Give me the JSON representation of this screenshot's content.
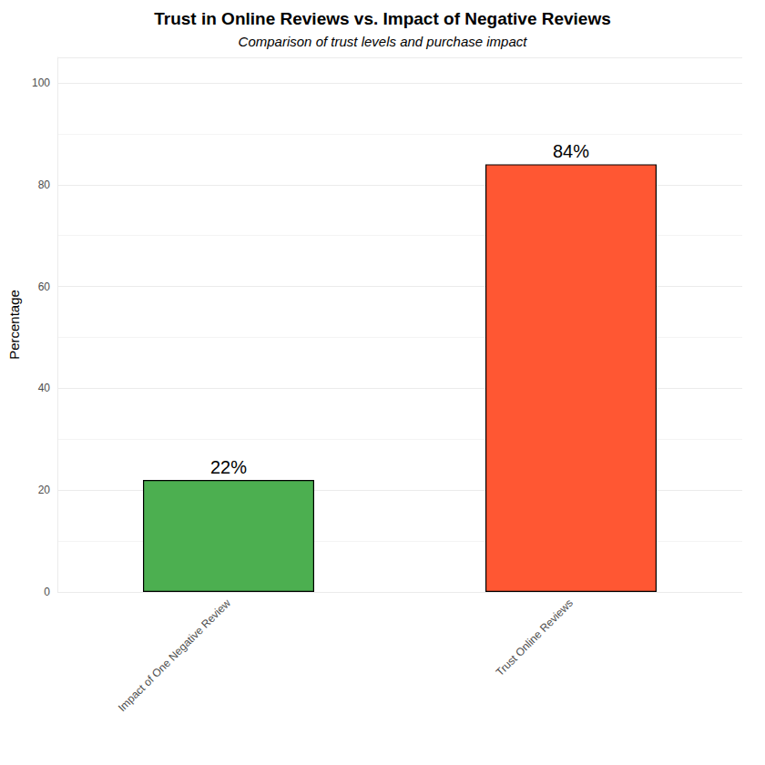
{
  "chart_data": {
    "type": "bar",
    "title": "Trust in Online Reviews vs. Impact of Negative Reviews",
    "subtitle": "Comparison of trust levels and purchase impact",
    "y_label": "Percentage",
    "categories": [
      "Impact of One Negative Review",
      "Trust Online Reviews"
    ],
    "values": [
      22,
      84
    ],
    "value_labels": [
      "22%",
      "84%"
    ],
    "colors": [
      "#4CAF50",
      "#FF5733"
    ],
    "ylim": [
      0,
      105
    ],
    "yticks": [
      0,
      20,
      40,
      60,
      80,
      100
    ],
    "grid": true,
    "data_labels": true
  }
}
